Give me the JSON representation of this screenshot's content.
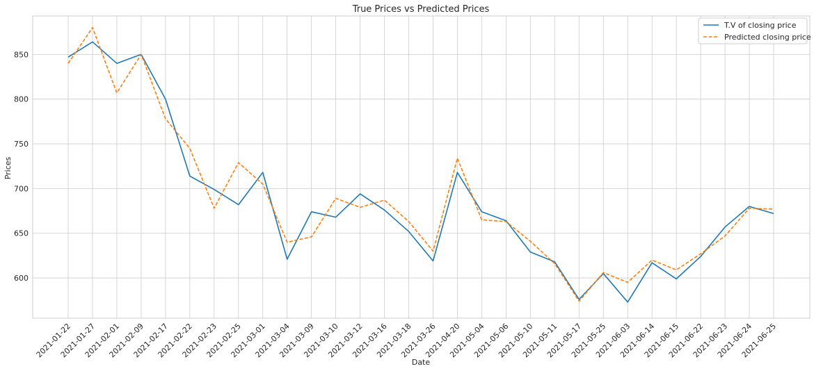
{
  "chart_data": {
    "type": "line",
    "title": "True Prices vs Predicted Prices",
    "xlabel": "Date",
    "ylabel": "Prices",
    "categories": [
      "2021-01-22",
      "2021-01-27",
      "2021-02-01",
      "2021-02-09",
      "2021-02-17",
      "2021-02-22",
      "2021-02-23",
      "2021-02-25",
      "2021-03-01",
      "2021-03-04",
      "2021-03-09",
      "2021-03-10",
      "2021-03-12",
      "2021-03-16",
      "2021-03-18",
      "2021-03-26",
      "2021-04-20",
      "2021-05-04",
      "2021-05-06",
      "2021-05-10",
      "2021-05-11",
      "2021-05-17",
      "2021-05-25",
      "2021-06-03",
      "2021-06-14",
      "2021-06-15",
      "2021-06-22",
      "2021-06-23",
      "2021-06-24",
      "2021-06-25"
    ],
    "ylim": [
      555,
      893
    ],
    "yticks": [
      600,
      650,
      700,
      750,
      800,
      850
    ],
    "grid": true,
    "legend_position": "top-right",
    "series": [
      {
        "name": "T.V of closing price",
        "color": "#1f77b4",
        "style": "solid",
        "values": [
          847,
          864,
          840,
          850,
          800,
          714,
          699,
          682,
          718,
          621,
          674,
          668,
          694,
          676,
          652,
          619,
          718,
          674,
          664,
          629,
          618,
          576,
          605,
          573,
          617,
          599,
          624,
          657,
          680,
          672
        ]
      },
      {
        "name": "Predicted closing price",
        "color": "#ff7f0e",
        "style": "dashed",
        "values": [
          840,
          880,
          807,
          850,
          778,
          745,
          678,
          729,
          705,
          640,
          646,
          689,
          679,
          687,
          663,
          630,
          734,
          665,
          663,
          641,
          616,
          574,
          606,
          595,
          620,
          609,
          627,
          647,
          678,
          677
        ]
      }
    ]
  }
}
